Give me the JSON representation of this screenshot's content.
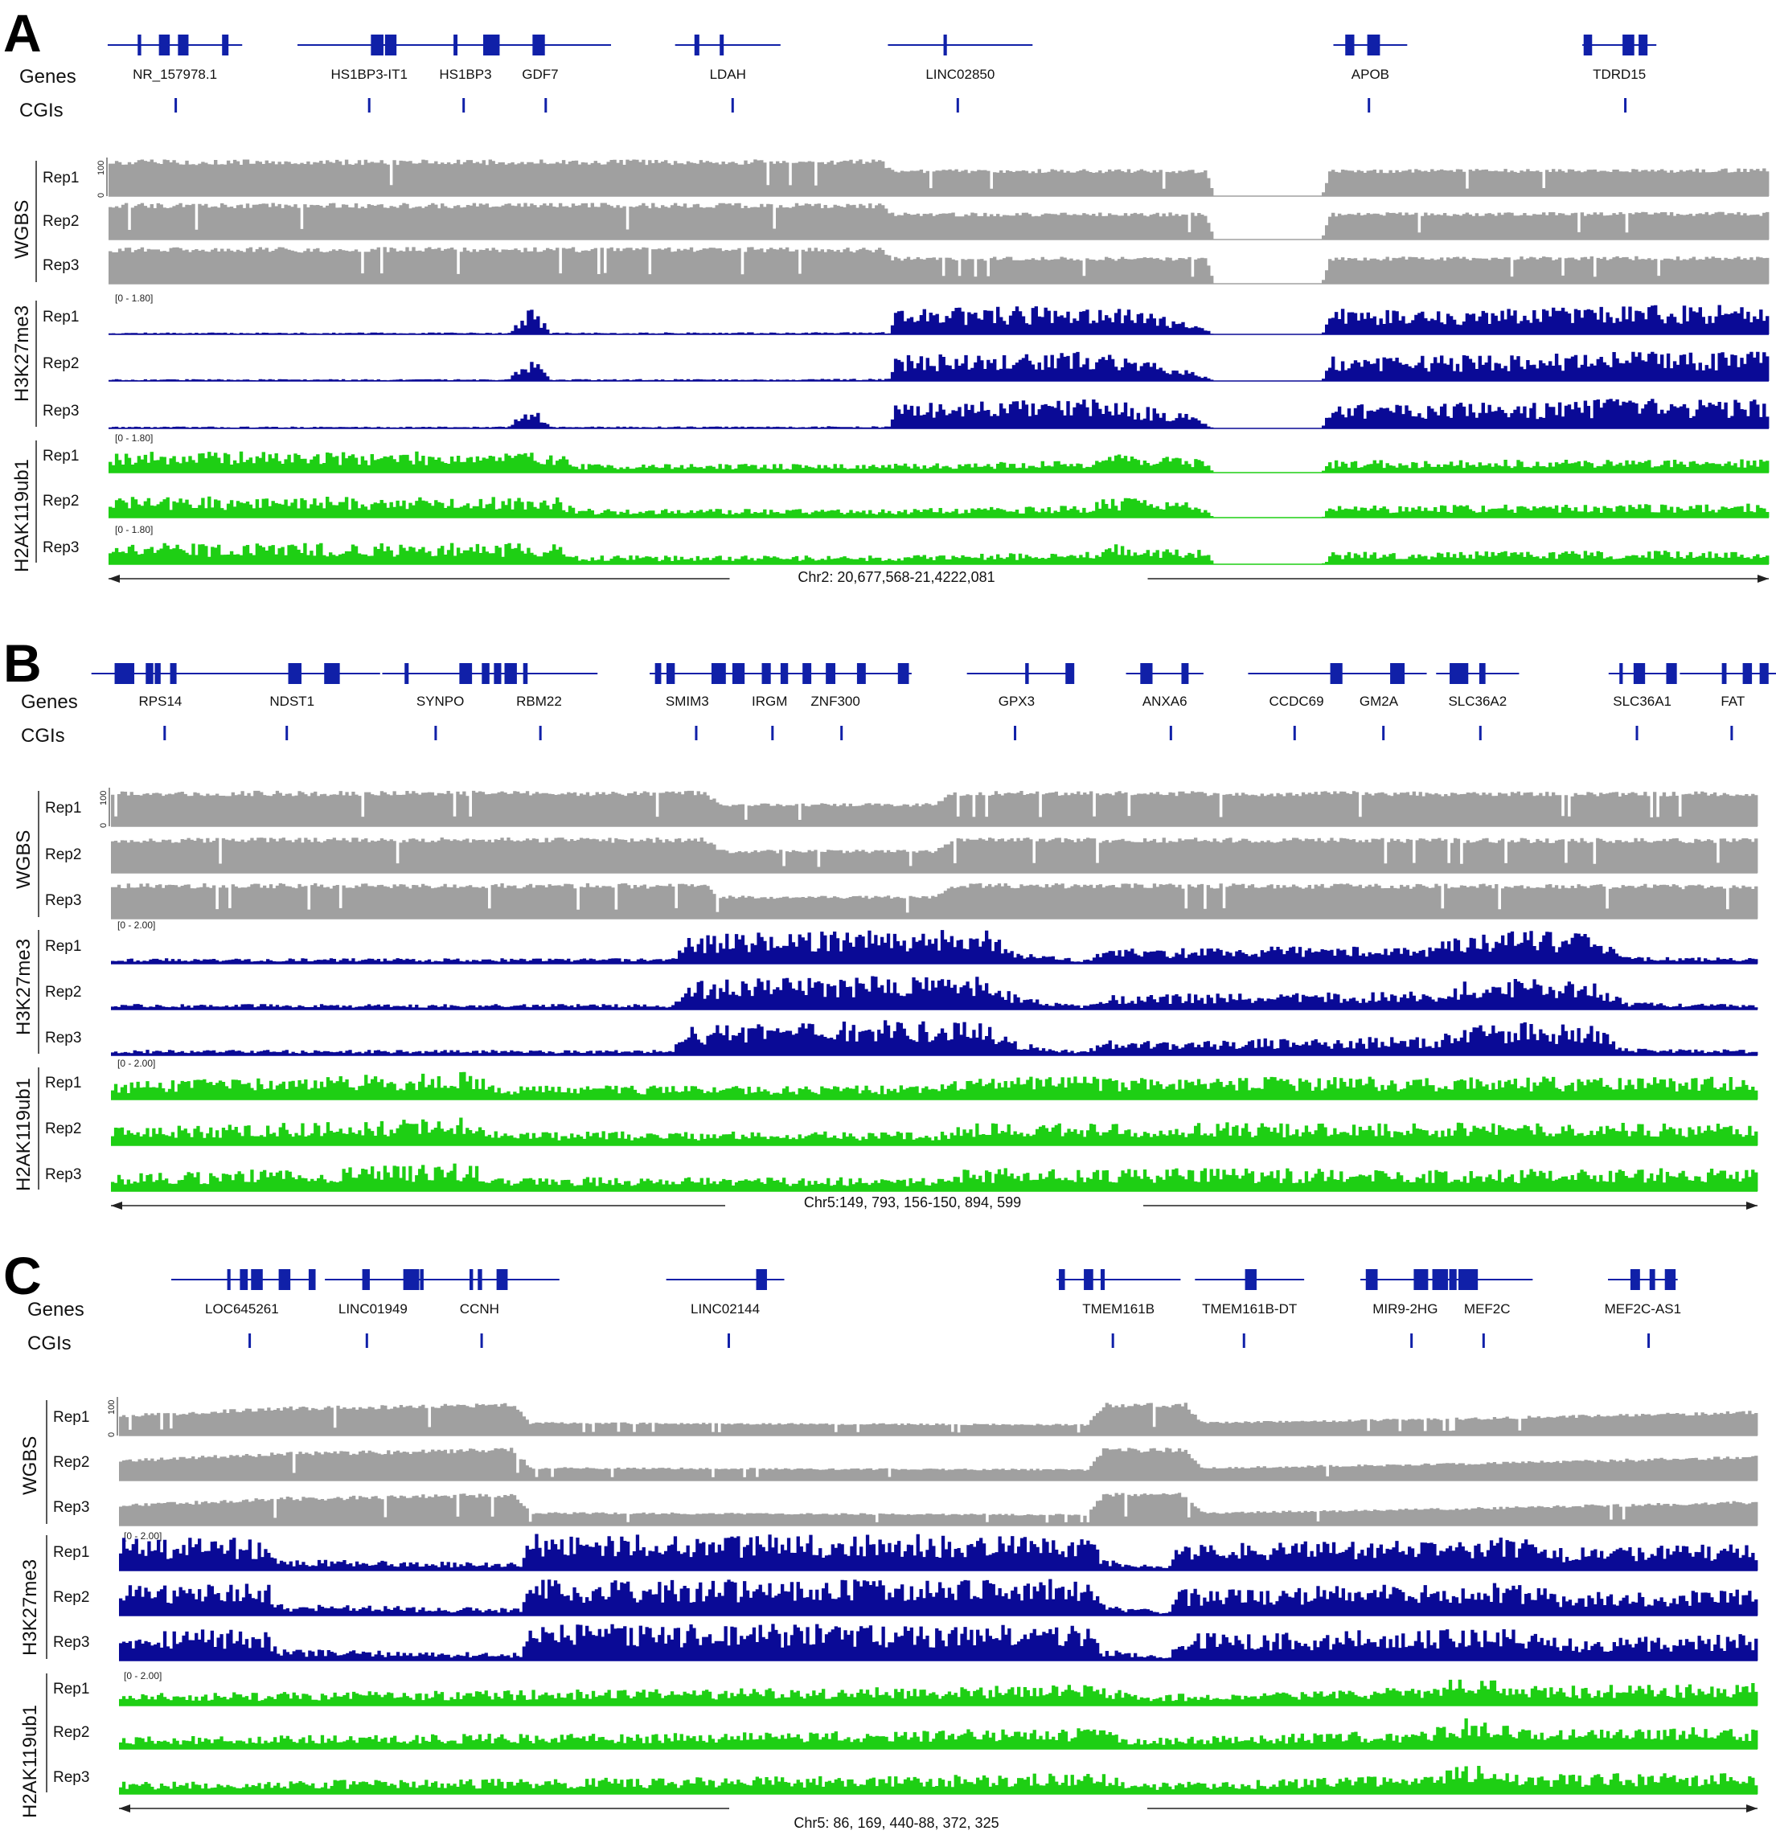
{
  "colors": {
    "gene": "#1020a8",
    "cgi": "#1020a8",
    "wgbs": "#a0a0a0",
    "h3k27me3": "#0a0a96",
    "h2ak119ub1": "#1ecf14"
  },
  "labels": {
    "genes": "Genes",
    "cgis": "CGIs",
    "wgbs": "WGBS",
    "h3k27me3": "H3K27me3",
    "h2ak119ub1": "H2AK119ub1",
    "reps": [
      "Rep1",
      "Rep2",
      "Rep3"
    ],
    "wgbs_scale_top": "100",
    "wgbs_scale_bottom": "0"
  },
  "panels": [
    {
      "id": "A",
      "letter": "A",
      "coordinate": "Chr2: 20,677,568-21,4222,081",
      "h3_range": "[0 - 1.80]",
      "h2a_ranges": [
        "[0 - 1.80]",
        "",
        "[0 - 1.80]"
      ],
      "genes": [
        {
          "name": "NR_157978.1",
          "f": 0.04
        },
        {
          "name": "HS1BP3-IT1",
          "f": 0.157
        },
        {
          "name": "HS1BP3",
          "f": 0.215
        },
        {
          "name": "GDF7",
          "f": 0.26
        },
        {
          "name": "LDAH",
          "f": 0.373
        },
        {
          "name": "LINC02850",
          "f": 0.513
        },
        {
          "name": "APOB",
          "f": 0.76
        },
        {
          "name": "TDRD15",
          "f": 0.91
        }
      ]
    },
    {
      "id": "B",
      "letter": "B",
      "coordinate": "Chr5:149, 793, 156-150, 894, 599",
      "h3_range": "[0 - 2.00]",
      "h2a_ranges": [
        "[0 - 2.00]",
        "",
        ""
      ],
      "genes": [
        {
          "name": "RPS14",
          "f": 0.03
        },
        {
          "name": "NDST1",
          "f": 0.11
        },
        {
          "name": "SYNPO",
          "f": 0.2
        },
        {
          "name": "RBM22",
          "f": 0.26
        },
        {
          "name": "SMIM3",
          "f": 0.35
        },
        {
          "name": "IRGM",
          "f": 0.4
        },
        {
          "name": "ZNF300",
          "f": 0.44
        },
        {
          "name": "GPX3",
          "f": 0.55
        },
        {
          "name": "ANXA6",
          "f": 0.64
        },
        {
          "name": "CCDC69",
          "f": 0.72
        },
        {
          "name": "GM2A",
          "f": 0.77
        },
        {
          "name": "SLC36A2",
          "f": 0.83
        },
        {
          "name": "SLC36A1",
          "f": 0.93
        },
        {
          "name": "FAT",
          "f": 0.985
        }
      ]
    },
    {
      "id": "C",
      "letter": "C",
      "coordinate": "Chr5: 86, 169, 440-88, 372, 325",
      "h3_range": "[0 - 2.00]",
      "h2a_ranges": [
        "[0 - 2.00]",
        "",
        ""
      ],
      "genes": [
        {
          "name": "LOC645261",
          "f": 0.075
        },
        {
          "name": "LINC01949",
          "f": 0.155
        },
        {
          "name": "CCNH",
          "f": 0.22
        },
        {
          "name": "LINC02144",
          "f": 0.37
        },
        {
          "name": "TMEM161B",
          "f": 0.61
        },
        {
          "name": "TMEM161B-DT",
          "f": 0.69
        },
        {
          "name": "MIR9-2HG",
          "f": 0.785
        },
        {
          "name": "MEF2C",
          "f": 0.835
        },
        {
          "name": "MEF2C-AS1",
          "f": 0.93
        }
      ]
    }
  ]
}
